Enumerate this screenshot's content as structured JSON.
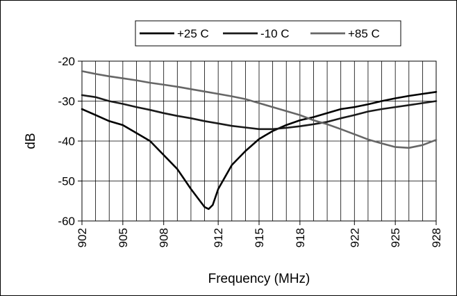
{
  "chart_data": {
    "type": "line",
    "xlabel": "Frequency (MHz)",
    "ylabel": "dB",
    "xlim": [
      902,
      928
    ],
    "ylim": [
      -60,
      -20
    ],
    "x_ticks": [
      902,
      905,
      908,
      912,
      915,
      918,
      922,
      925,
      928
    ],
    "y_ticks": [
      -20,
      -30,
      -40,
      -50,
      -60
    ],
    "grid": {
      "vertical": true,
      "horizontal": true
    },
    "legend_position": "top",
    "series": [
      {
        "name": "+25 C",
        "color": "#000000",
        "x": [
          902,
          903,
          904,
          905,
          906,
          907,
          908,
          909,
          910,
          911,
          911.3,
          911.6,
          912,
          913,
          914,
          915,
          916,
          917,
          918,
          919,
          920,
          921,
          922,
          923,
          924,
          925,
          926,
          927,
          928
        ],
        "y": [
          -32,
          -33.5,
          -35,
          -36,
          -38,
          -40,
          -43.5,
          -47,
          -52,
          -56.5,
          -57,
          -56,
          -52,
          -46,
          -42.5,
          -39.5,
          -37.5,
          -36,
          -34.8,
          -34,
          -33,
          -32,
          -31.5,
          -30.8,
          -30,
          -29.3,
          -28.7,
          -28.2,
          -27.7
        ]
      },
      {
        "name": "-10 C",
        "color": "#1a1a1a",
        "x": [
          902,
          903,
          904,
          905,
          906,
          907,
          908,
          909,
          910,
          911,
          912,
          913,
          914,
          915,
          916,
          917,
          918,
          919,
          920,
          921,
          922,
          923,
          924,
          925,
          926,
          927,
          928
        ],
        "y": [
          -28.5,
          -29,
          -30,
          -30.7,
          -31.5,
          -32.2,
          -33,
          -33.7,
          -34.3,
          -35,
          -35.6,
          -36.2,
          -36.6,
          -37,
          -37,
          -36.7,
          -36.3,
          -35.8,
          -35.2,
          -34.3,
          -33.5,
          -32.6,
          -32,
          -31.5,
          -31,
          -30.5,
          -30
        ]
      },
      {
        "name": "+85 C",
        "color": "#666666",
        "x": [
          902,
          903,
          904,
          905,
          906,
          907,
          908,
          909,
          910,
          911,
          912,
          913,
          914,
          915,
          916,
          917,
          918,
          919,
          920,
          921,
          922,
          923,
          924,
          925,
          926,
          927,
          928
        ],
        "y": [
          -22.5,
          -23.2,
          -23.8,
          -24.3,
          -24.8,
          -25.4,
          -25.9,
          -26.4,
          -27,
          -27.6,
          -28.2,
          -28.8,
          -29.5,
          -30.5,
          -31.5,
          -32.5,
          -33.5,
          -34.8,
          -35.8,
          -37,
          -38.3,
          -39.6,
          -40.6,
          -41.5,
          -41.7,
          -41,
          -39.7
        ]
      }
    ]
  }
}
